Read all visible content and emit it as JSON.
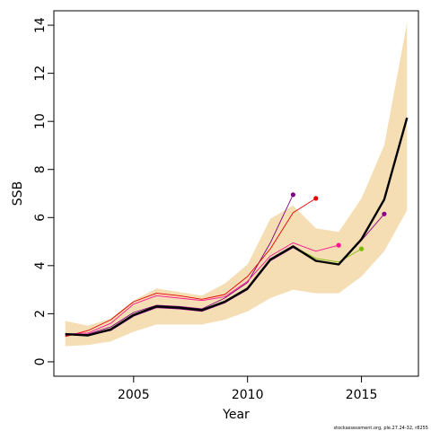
{
  "chart_data": {
    "type": "line",
    "xlabel": "Year",
    "ylabel": "SSB",
    "xlim": [
      2001.5,
      2017.5
    ],
    "ylim": [
      -0.6,
      14.6
    ],
    "x_ticks": [
      2005,
      2010,
      2015
    ],
    "y_ticks": [
      0,
      2,
      4,
      6,
      8,
      10,
      12,
      14
    ],
    "grid": false,
    "legend": "none",
    "confidence_band": {
      "color": "#f5deb3",
      "x": [
        2002,
        2003,
        2004,
        2005,
        2006,
        2007,
        2008,
        2009,
        2010,
        2011,
        2012,
        2013,
        2014,
        2015,
        2016,
        2017
      ],
      "lower": [
        0.65,
        0.7,
        0.85,
        1.25,
        1.55,
        1.55,
        1.55,
        1.75,
        2.1,
        2.65,
        3.0,
        2.85,
        2.85,
        3.55,
        4.6,
        6.3
      ],
      "upper": [
        1.7,
        1.5,
        1.8,
        2.55,
        3.05,
        2.9,
        2.75,
        3.25,
        4.05,
        5.95,
        6.5,
        5.55,
        5.4,
        6.8,
        9.0,
        14.1
      ]
    },
    "series": [
      {
        "color": "#800080",
        "x": [
          2002,
          2003,
          2004,
          2005,
          2006,
          2007,
          2008,
          2009,
          2010,
          2011,
          2012
        ],
        "values": [
          1.1,
          1.15,
          1.45,
          2.05,
          2.35,
          2.3,
          2.2,
          2.65,
          3.3,
          4.95,
          6.95
        ]
      },
      {
        "color": "#e60000",
        "x": [
          2002,
          2003,
          2004,
          2005,
          2006,
          2007,
          2008,
          2009,
          2010,
          2011,
          2012,
          2013
        ],
        "values": [
          1.05,
          1.3,
          1.75,
          2.5,
          2.85,
          2.75,
          2.6,
          2.8,
          3.55,
          4.7,
          6.2,
          6.8
        ]
      },
      {
        "color": "#ff1493",
        "x": [
          2002,
          2003,
          2004,
          2005,
          2006,
          2007,
          2008,
          2009,
          2010,
          2011,
          2012,
          2013,
          2014
        ],
        "values": [
          1.15,
          1.2,
          1.6,
          2.4,
          2.75,
          2.65,
          2.55,
          2.7,
          3.35,
          4.4,
          4.95,
          4.6,
          4.85
        ]
      },
      {
        "color": "#7cbb00",
        "x": [
          2002,
          2003,
          2004,
          2005,
          2006,
          2007,
          2008,
          2009,
          2010,
          2011,
          2012,
          2013,
          2014,
          2015
        ],
        "values": [
          1.15,
          1.1,
          1.35,
          1.95,
          2.3,
          2.25,
          2.15,
          2.5,
          3.05,
          4.25,
          4.8,
          4.3,
          4.15,
          4.7
        ]
      },
      {
        "color": "#8b008b",
        "x": [
          2002,
          2003,
          2004,
          2005,
          2006,
          2007,
          2008,
          2009,
          2010,
          2011,
          2012,
          2013,
          2014,
          2015,
          2016
        ],
        "values": [
          1.15,
          1.1,
          1.3,
          1.9,
          2.25,
          2.2,
          2.1,
          2.45,
          3.0,
          4.2,
          4.75,
          4.2,
          4.05,
          5.05,
          6.15
        ]
      },
      {
        "color": "#000000",
        "bold": true,
        "x": [
          2002,
          2003,
          2004,
          2005,
          2006,
          2007,
          2008,
          2009,
          2010,
          2011,
          2012,
          2013,
          2014,
          2015,
          2016,
          2017
        ],
        "values": [
          1.15,
          1.1,
          1.35,
          1.95,
          2.3,
          2.25,
          2.15,
          2.5,
          3.05,
          4.25,
          4.8,
          4.2,
          4.05,
          5.1,
          6.75,
          10.15
        ]
      }
    ],
    "footnote": "stockassessment.org, ple.27.24-32, r8255"
  }
}
